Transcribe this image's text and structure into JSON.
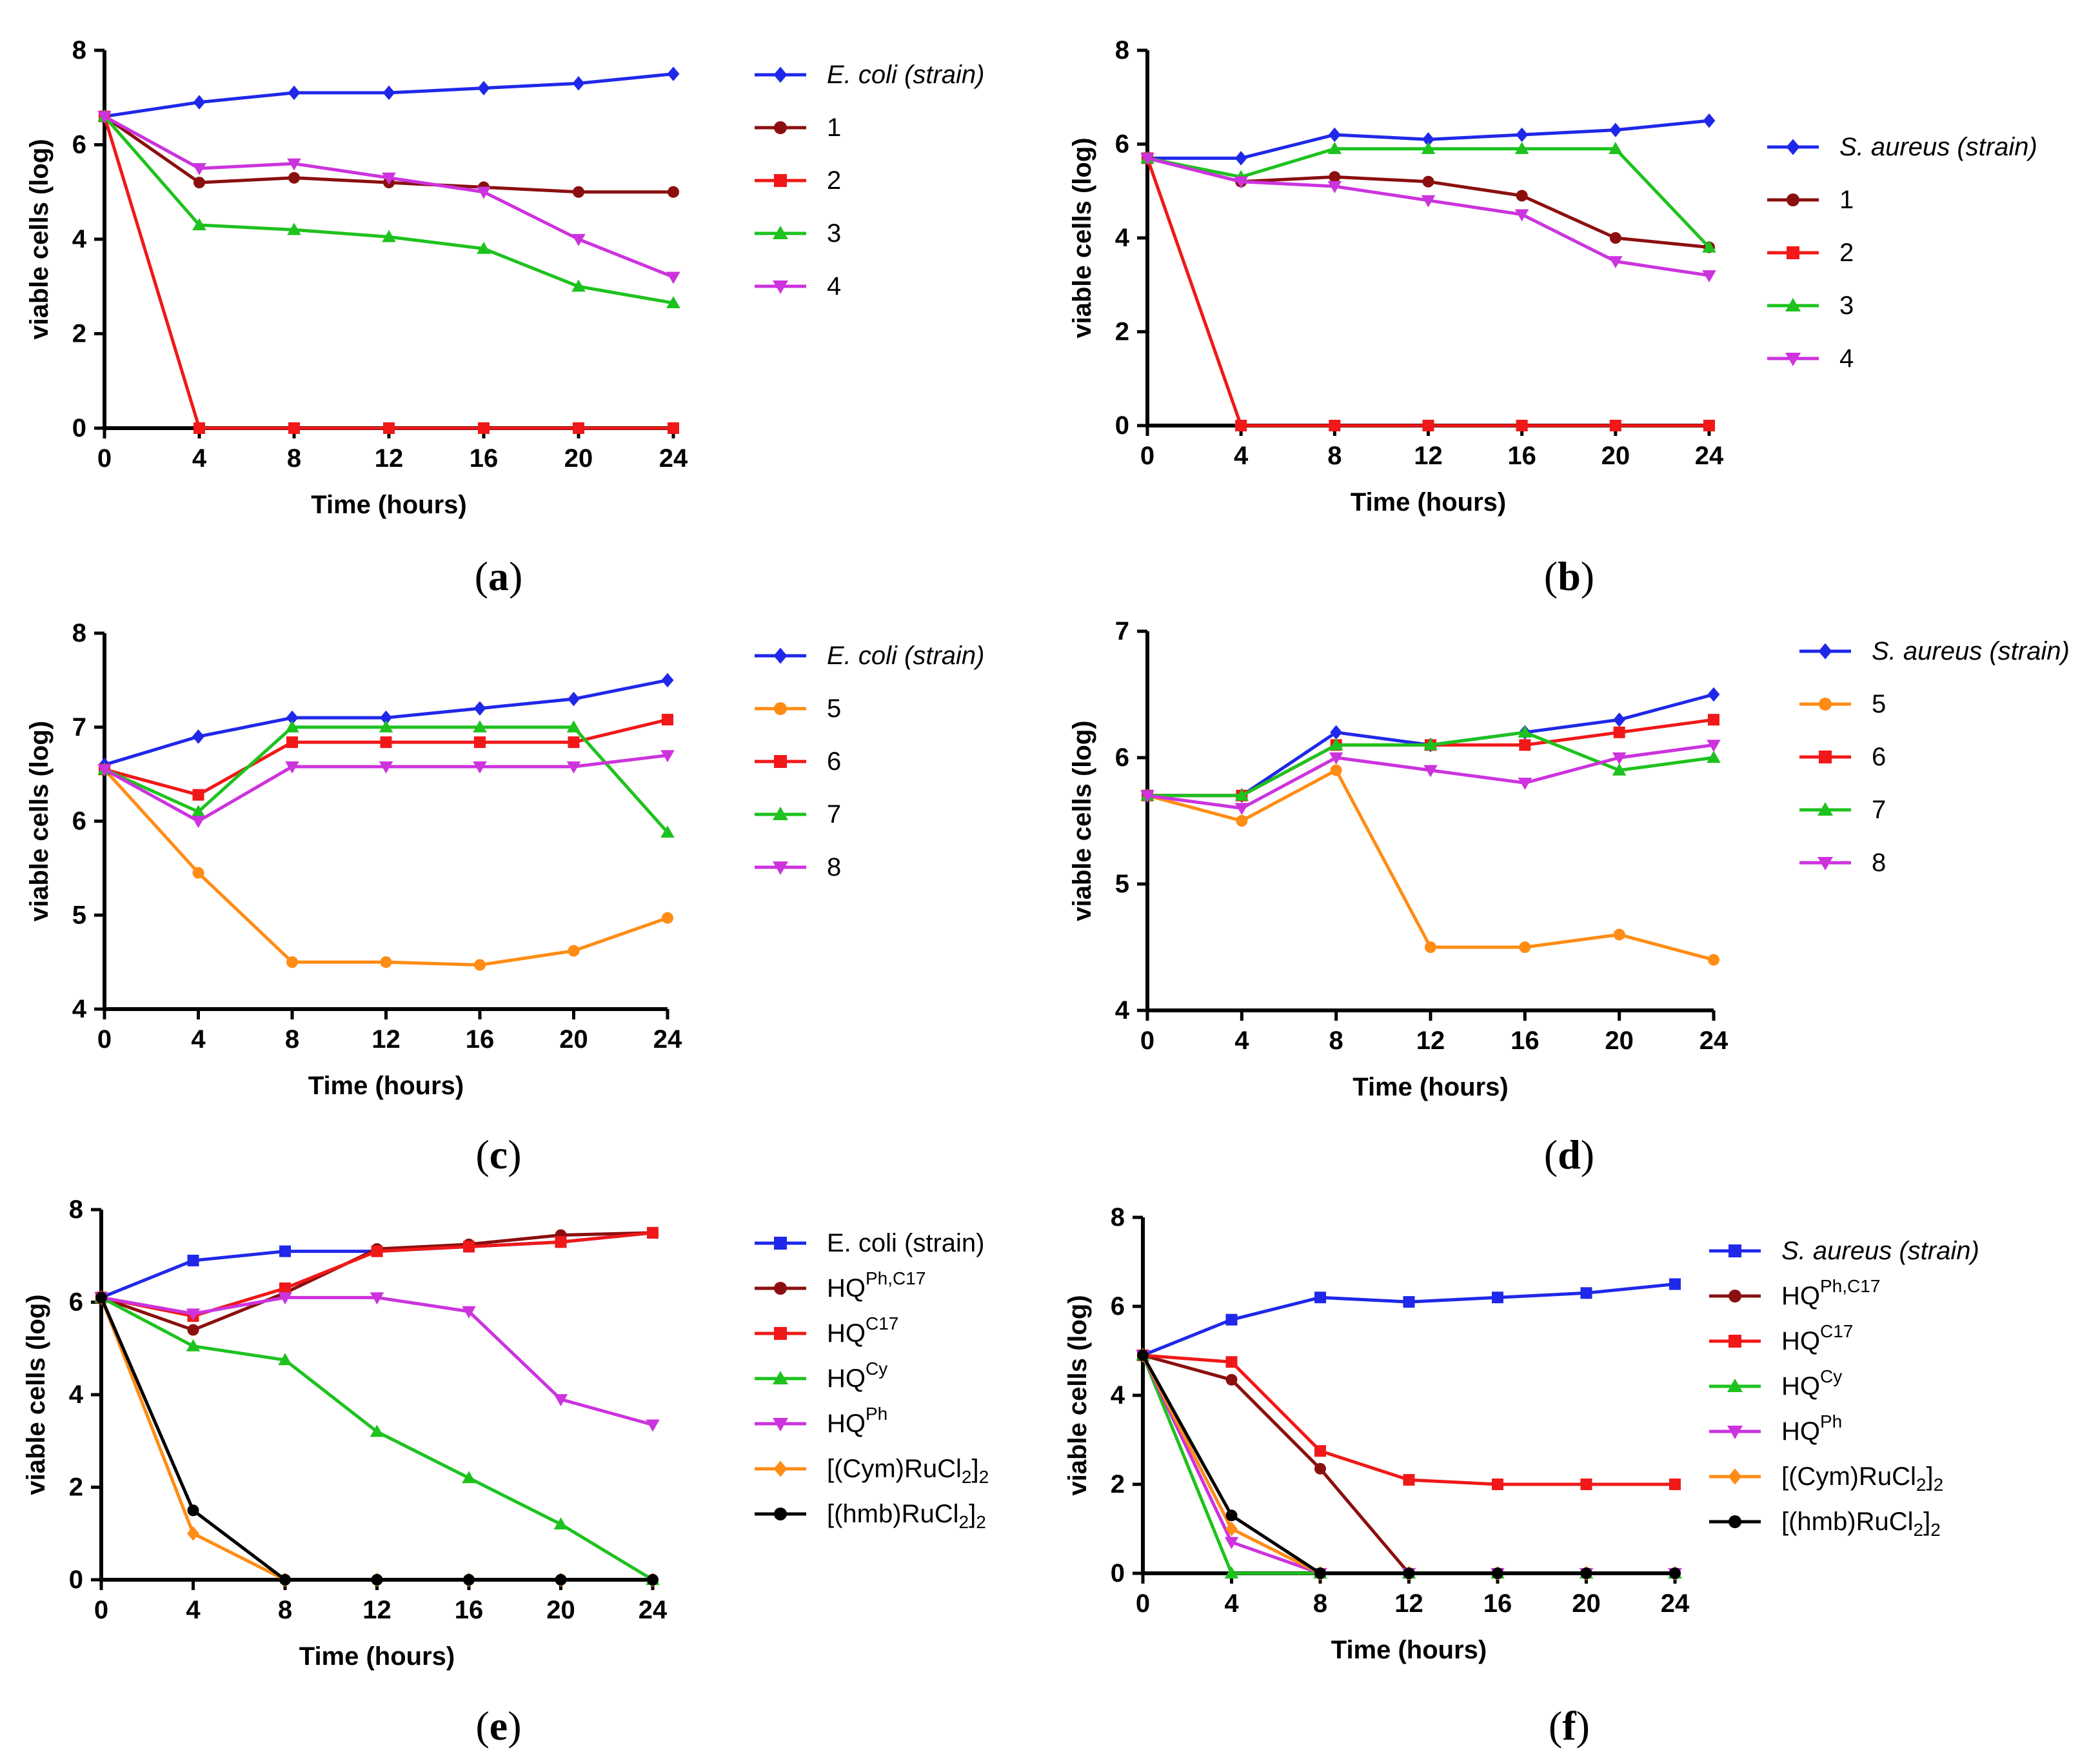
{
  "figure": {
    "colors": {
      "blue": "#1f28e8",
      "darkred": "#8b0f0f",
      "red": "#f01818",
      "green": "#1ec21e",
      "magenta": "#cc33dd",
      "orange": "#ff8c14",
      "black": "#000000"
    }
  },
  "chart_data": [
    {
      "id": "a",
      "type": "line",
      "caption": "a",
      "xlabel": "Time (hours)",
      "ylabel": "viable cells (log)",
      "x": [
        0,
        4,
        8,
        12,
        16,
        20,
        24
      ],
      "xticks": [
        0,
        4,
        8,
        12,
        16,
        20,
        24
      ],
      "ylim": [
        0,
        8
      ],
      "yticks": [
        0,
        2,
        4,
        6,
        8
      ],
      "legend": "right",
      "series": [
        {
          "name": "E. coli (strain)",
          "italic": true,
          "color": "blue",
          "marker": "diamond",
          "values": [
            6.6,
            6.9,
            7.1,
            7.1,
            7.2,
            7.3,
            7.5
          ]
        },
        {
          "name": "1",
          "color": "darkred",
          "marker": "circle",
          "values": [
            6.6,
            5.2,
            5.3,
            5.2,
            5.1,
            5.0,
            5.0
          ]
        },
        {
          "name": "2",
          "color": "red",
          "marker": "square",
          "values": [
            6.6,
            0,
            0,
            0,
            0,
            0,
            0
          ]
        },
        {
          "name": "3",
          "color": "green",
          "marker": "triangle-up",
          "values": [
            6.6,
            4.3,
            4.2,
            4.05,
            3.8,
            3.0,
            2.65
          ]
        },
        {
          "name": "4",
          "color": "magenta",
          "marker": "triangle-down",
          "values": [
            6.6,
            5.5,
            5.6,
            5.3,
            5.0,
            4.0,
            3.2
          ]
        }
      ]
    },
    {
      "id": "b",
      "type": "line",
      "caption": "b",
      "xlabel": "Time (hours)",
      "ylabel": "viable cells (log)",
      "x": [
        0,
        4,
        8,
        12,
        16,
        20,
        24
      ],
      "xticks": [
        0,
        4,
        8,
        12,
        16,
        20,
        24
      ],
      "ylim": [
        0,
        8
      ],
      "yticks": [
        0,
        2,
        4,
        6,
        8
      ],
      "legend": "right",
      "series": [
        {
          "name": "S. aureus (strain)",
          "italic": true,
          "color": "blue",
          "marker": "diamond",
          "values": [
            5.7,
            5.7,
            6.2,
            6.1,
            6.2,
            6.3,
            6.5
          ]
        },
        {
          "name": "1",
          "color": "darkred",
          "marker": "circle",
          "values": [
            5.7,
            5.2,
            5.3,
            5.2,
            4.9,
            4.0,
            3.8
          ]
        },
        {
          "name": "2",
          "color": "red",
          "marker": "square",
          "values": [
            5.7,
            0,
            0,
            0,
            0,
            0,
            0
          ]
        },
        {
          "name": "3",
          "color": "green",
          "marker": "triangle-up",
          "values": [
            5.7,
            5.3,
            5.9,
            5.9,
            5.9,
            5.9,
            3.8
          ]
        },
        {
          "name": "4",
          "color": "magenta",
          "marker": "triangle-down",
          "values": [
            5.7,
            5.2,
            5.1,
            4.8,
            4.5,
            3.5,
            3.2
          ]
        }
      ]
    },
    {
      "id": "c",
      "type": "line",
      "caption": "c",
      "xlabel": "Time (hours)",
      "ylabel": "viable cells (log)",
      "x": [
        0,
        4,
        8,
        12,
        16,
        20,
        24
      ],
      "xticks": [
        0,
        4,
        8,
        12,
        16,
        20,
        24
      ],
      "ylim": [
        4,
        8
      ],
      "yticks": [
        4,
        5,
        6,
        7,
        8
      ],
      "legend": "right",
      "series": [
        {
          "name": "E. coli (strain)",
          "italic": true,
          "color": "blue",
          "marker": "diamond",
          "values": [
            6.6,
            6.9,
            7.1,
            7.1,
            7.2,
            7.3,
            7.5
          ]
        },
        {
          "name": "5",
          "color": "orange",
          "marker": "circle",
          "values": [
            6.55,
            5.45,
            4.5,
            4.5,
            4.47,
            4.62,
            4.97
          ]
        },
        {
          "name": "6",
          "color": "red",
          "marker": "square",
          "values": [
            6.55,
            6.28,
            6.84,
            6.84,
            6.84,
            6.84,
            7.08
          ]
        },
        {
          "name": "7",
          "color": "green",
          "marker": "triangle-up",
          "values": [
            6.55,
            6.1,
            7.0,
            7.0,
            7.0,
            7.0,
            5.88
          ]
        },
        {
          "name": "8",
          "color": "magenta",
          "marker": "triangle-down",
          "values": [
            6.55,
            6.0,
            6.58,
            6.58,
            6.58,
            6.58,
            6.7
          ]
        }
      ]
    },
    {
      "id": "d",
      "type": "line",
      "caption": "d",
      "xlabel": "Time (hours)",
      "ylabel": "viable cells (log)",
      "x": [
        0,
        4,
        8,
        12,
        16,
        20,
        24
      ],
      "xticks": [
        0,
        4,
        8,
        12,
        16,
        20,
        24
      ],
      "ylim": [
        4,
        7
      ],
      "yticks": [
        4,
        5,
        6,
        7
      ],
      "legend": "right",
      "series": [
        {
          "name": "S. aureus (strain)",
          "italic": true,
          "color": "blue",
          "marker": "diamond",
          "values": [
            5.7,
            5.7,
            6.2,
            6.1,
            6.2,
            6.3,
            6.5
          ]
        },
        {
          "name": "5",
          "color": "orange",
          "marker": "circle",
          "values": [
            5.7,
            5.5,
            5.9,
            4.5,
            4.5,
            4.6,
            4.4
          ]
        },
        {
          "name": "6",
          "color": "red",
          "marker": "square",
          "values": [
            5.7,
            5.7,
            6.1,
            6.1,
            6.1,
            6.2,
            6.3
          ]
        },
        {
          "name": "7",
          "color": "green",
          "marker": "triangle-up",
          "values": [
            5.7,
            5.7,
            6.1,
            6.1,
            6.2,
            5.9,
            6.0
          ]
        },
        {
          "name": "8",
          "color": "magenta",
          "marker": "triangle-down",
          "values": [
            5.7,
            5.6,
            6.0,
            5.9,
            5.8,
            6.0,
            6.1
          ]
        }
      ]
    },
    {
      "id": "e",
      "type": "line",
      "caption": "e",
      "xlabel": "Time (hours)",
      "ylabel": "viable cells (log)",
      "x": [
        0,
        4,
        8,
        12,
        16,
        20,
        24
      ],
      "xticks": [
        0,
        4,
        8,
        12,
        16,
        20,
        24
      ],
      "ylim": [
        0,
        8
      ],
      "yticks": [
        0,
        2,
        4,
        6,
        8
      ],
      "legend": "right",
      "series": [
        {
          "name": "E. coli (strain)",
          "color": "blue",
          "marker": "square",
          "values": [
            6.1,
            6.9,
            7.1,
            7.1,
            7.2,
            7.3,
            7.5
          ]
        },
        {
          "name": "HQPh,C17",
          "label_base": "HQ",
          "label_sup": "Ph,C17",
          "color": "darkred",
          "marker": "circle",
          "values": [
            6.1,
            5.4,
            6.2,
            7.15,
            7.25,
            7.45,
            7.5
          ]
        },
        {
          "name": "HQC17",
          "label_base": "HQ",
          "label_sup": "C17",
          "color": "red",
          "marker": "square",
          "values": [
            6.1,
            5.7,
            6.3,
            7.1,
            7.2,
            7.3,
            7.5
          ]
        },
        {
          "name": "HQCy",
          "label_base": "HQ",
          "label_sup": "Cy",
          "color": "green",
          "marker": "triangle-up",
          "values": [
            6.1,
            5.05,
            4.75,
            3.2,
            2.2,
            1.2,
            0
          ]
        },
        {
          "name": "HQPh",
          "label_base": "HQ",
          "label_sup": "Ph",
          "color": "magenta",
          "marker": "triangle-down",
          "values": [
            6.1,
            5.75,
            6.1,
            6.1,
            5.8,
            3.9,
            3.35
          ]
        },
        {
          "name": "[(Cym)RuCl2]2",
          "label_base": "[(Cym)RuCl",
          "label_sub": "2",
          "label_tail": "]",
          "label_sub2": "2",
          "color": "orange",
          "marker": "diamond",
          "values": [
            6.1,
            1.0,
            0,
            0,
            0,
            0,
            0
          ]
        },
        {
          "name": "[(hmb)RuCl2]2",
          "label_base": "[(hmb)RuCl",
          "label_sub": "2",
          "label_tail": "]",
          "label_sub2": "2",
          "color": "black",
          "marker": "circle",
          "values": [
            6.1,
            1.5,
            0,
            0,
            0,
            0,
            0
          ]
        }
      ]
    },
    {
      "id": "f",
      "type": "line",
      "caption": "f",
      "xlabel": "Time (hours)",
      "ylabel": "viable cells (log)",
      "x": [
        0,
        4,
        8,
        12,
        16,
        20,
        24
      ],
      "xticks": [
        0,
        4,
        8,
        12,
        16,
        20,
        24
      ],
      "ylim": [
        0,
        8
      ],
      "yticks": [
        0,
        2,
        4,
        6,
        8
      ],
      "legend": "right",
      "series": [
        {
          "name": "S. aureus (strain)",
          "italic": true,
          "color": "blue",
          "marker": "square",
          "values": [
            4.9,
            5.7,
            6.2,
            6.1,
            6.2,
            6.3,
            6.5
          ]
        },
        {
          "name": "HQPh,C17",
          "label_base": "HQ",
          "label_sup": "Ph,C17",
          "color": "darkred",
          "marker": "circle",
          "values": [
            4.9,
            4.35,
            2.35,
            0,
            0,
            0,
            0
          ]
        },
        {
          "name": "HQC17",
          "label_base": "HQ",
          "label_sup": "C17",
          "color": "red",
          "marker": "square",
          "values": [
            4.9,
            4.75,
            2.75,
            2.1,
            2.0,
            2.0,
            2.0
          ]
        },
        {
          "name": "HQCy",
          "label_base": "HQ",
          "label_sup": "Cy",
          "color": "green",
          "marker": "triangle-up",
          "values": [
            4.9,
            0,
            0,
            0,
            0,
            0,
            0
          ]
        },
        {
          "name": "HQPh",
          "label_base": "HQ",
          "label_sup": "Ph",
          "color": "magenta",
          "marker": "triangle-down",
          "values": [
            4.9,
            0.7,
            0,
            0,
            0,
            0,
            0
          ]
        },
        {
          "name": "[(Cym)RuCl2]2",
          "label_base": "[(Cym)RuCl",
          "label_sub": "2",
          "label_tail": "]",
          "label_sub2": "2",
          "color": "orange",
          "marker": "diamond",
          "values": [
            4.9,
            1.0,
            0,
            0,
            0,
            0,
            0
          ]
        },
        {
          "name": "[(hmb)RuCl2]2",
          "label_base": "[(hmb)RuCl",
          "label_sub": "2",
          "label_tail": "]",
          "label_sub2": "2",
          "color": "black",
          "marker": "circle",
          "values": [
            4.9,
            1.3,
            0,
            0,
            0,
            0,
            0
          ]
        }
      ]
    }
  ]
}
